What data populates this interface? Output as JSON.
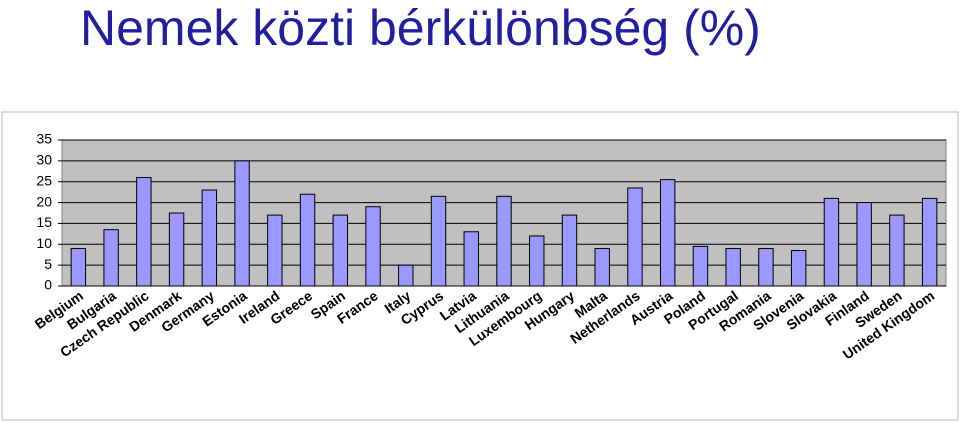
{
  "chart_data": {
    "type": "bar",
    "title": "Nemek közti bérkülönbség (%)",
    "categories": [
      "Belgium",
      "Bulgaria",
      "Czech Republic",
      "Denmark",
      "Germany",
      "Estonia",
      "Ireland",
      "Greece",
      "Spain",
      "France",
      "Italy",
      "Cyprus",
      "Latvia",
      "Lithuania",
      "Luxembourg",
      "Hungary",
      "Malta",
      "Netherlands",
      "Austria",
      "Poland",
      "Portugal",
      "Romania",
      "Slovenia",
      "Slovakia",
      "Finland",
      "Sweden",
      "United Kingdom"
    ],
    "values": [
      9,
      13.5,
      26,
      17.5,
      23,
      30,
      17,
      22,
      17,
      19,
      5,
      21.5,
      13,
      21.5,
      12,
      17,
      9,
      23.5,
      25.5,
      9.5,
      9,
      9,
      8.5,
      21,
      20,
      17,
      21
    ],
    "color": "#9999ff",
    "ylim": [
      0,
      35
    ],
    "yticks": [
      0,
      5,
      10,
      15,
      20,
      25,
      30,
      35
    ],
    "grid": true
  }
}
